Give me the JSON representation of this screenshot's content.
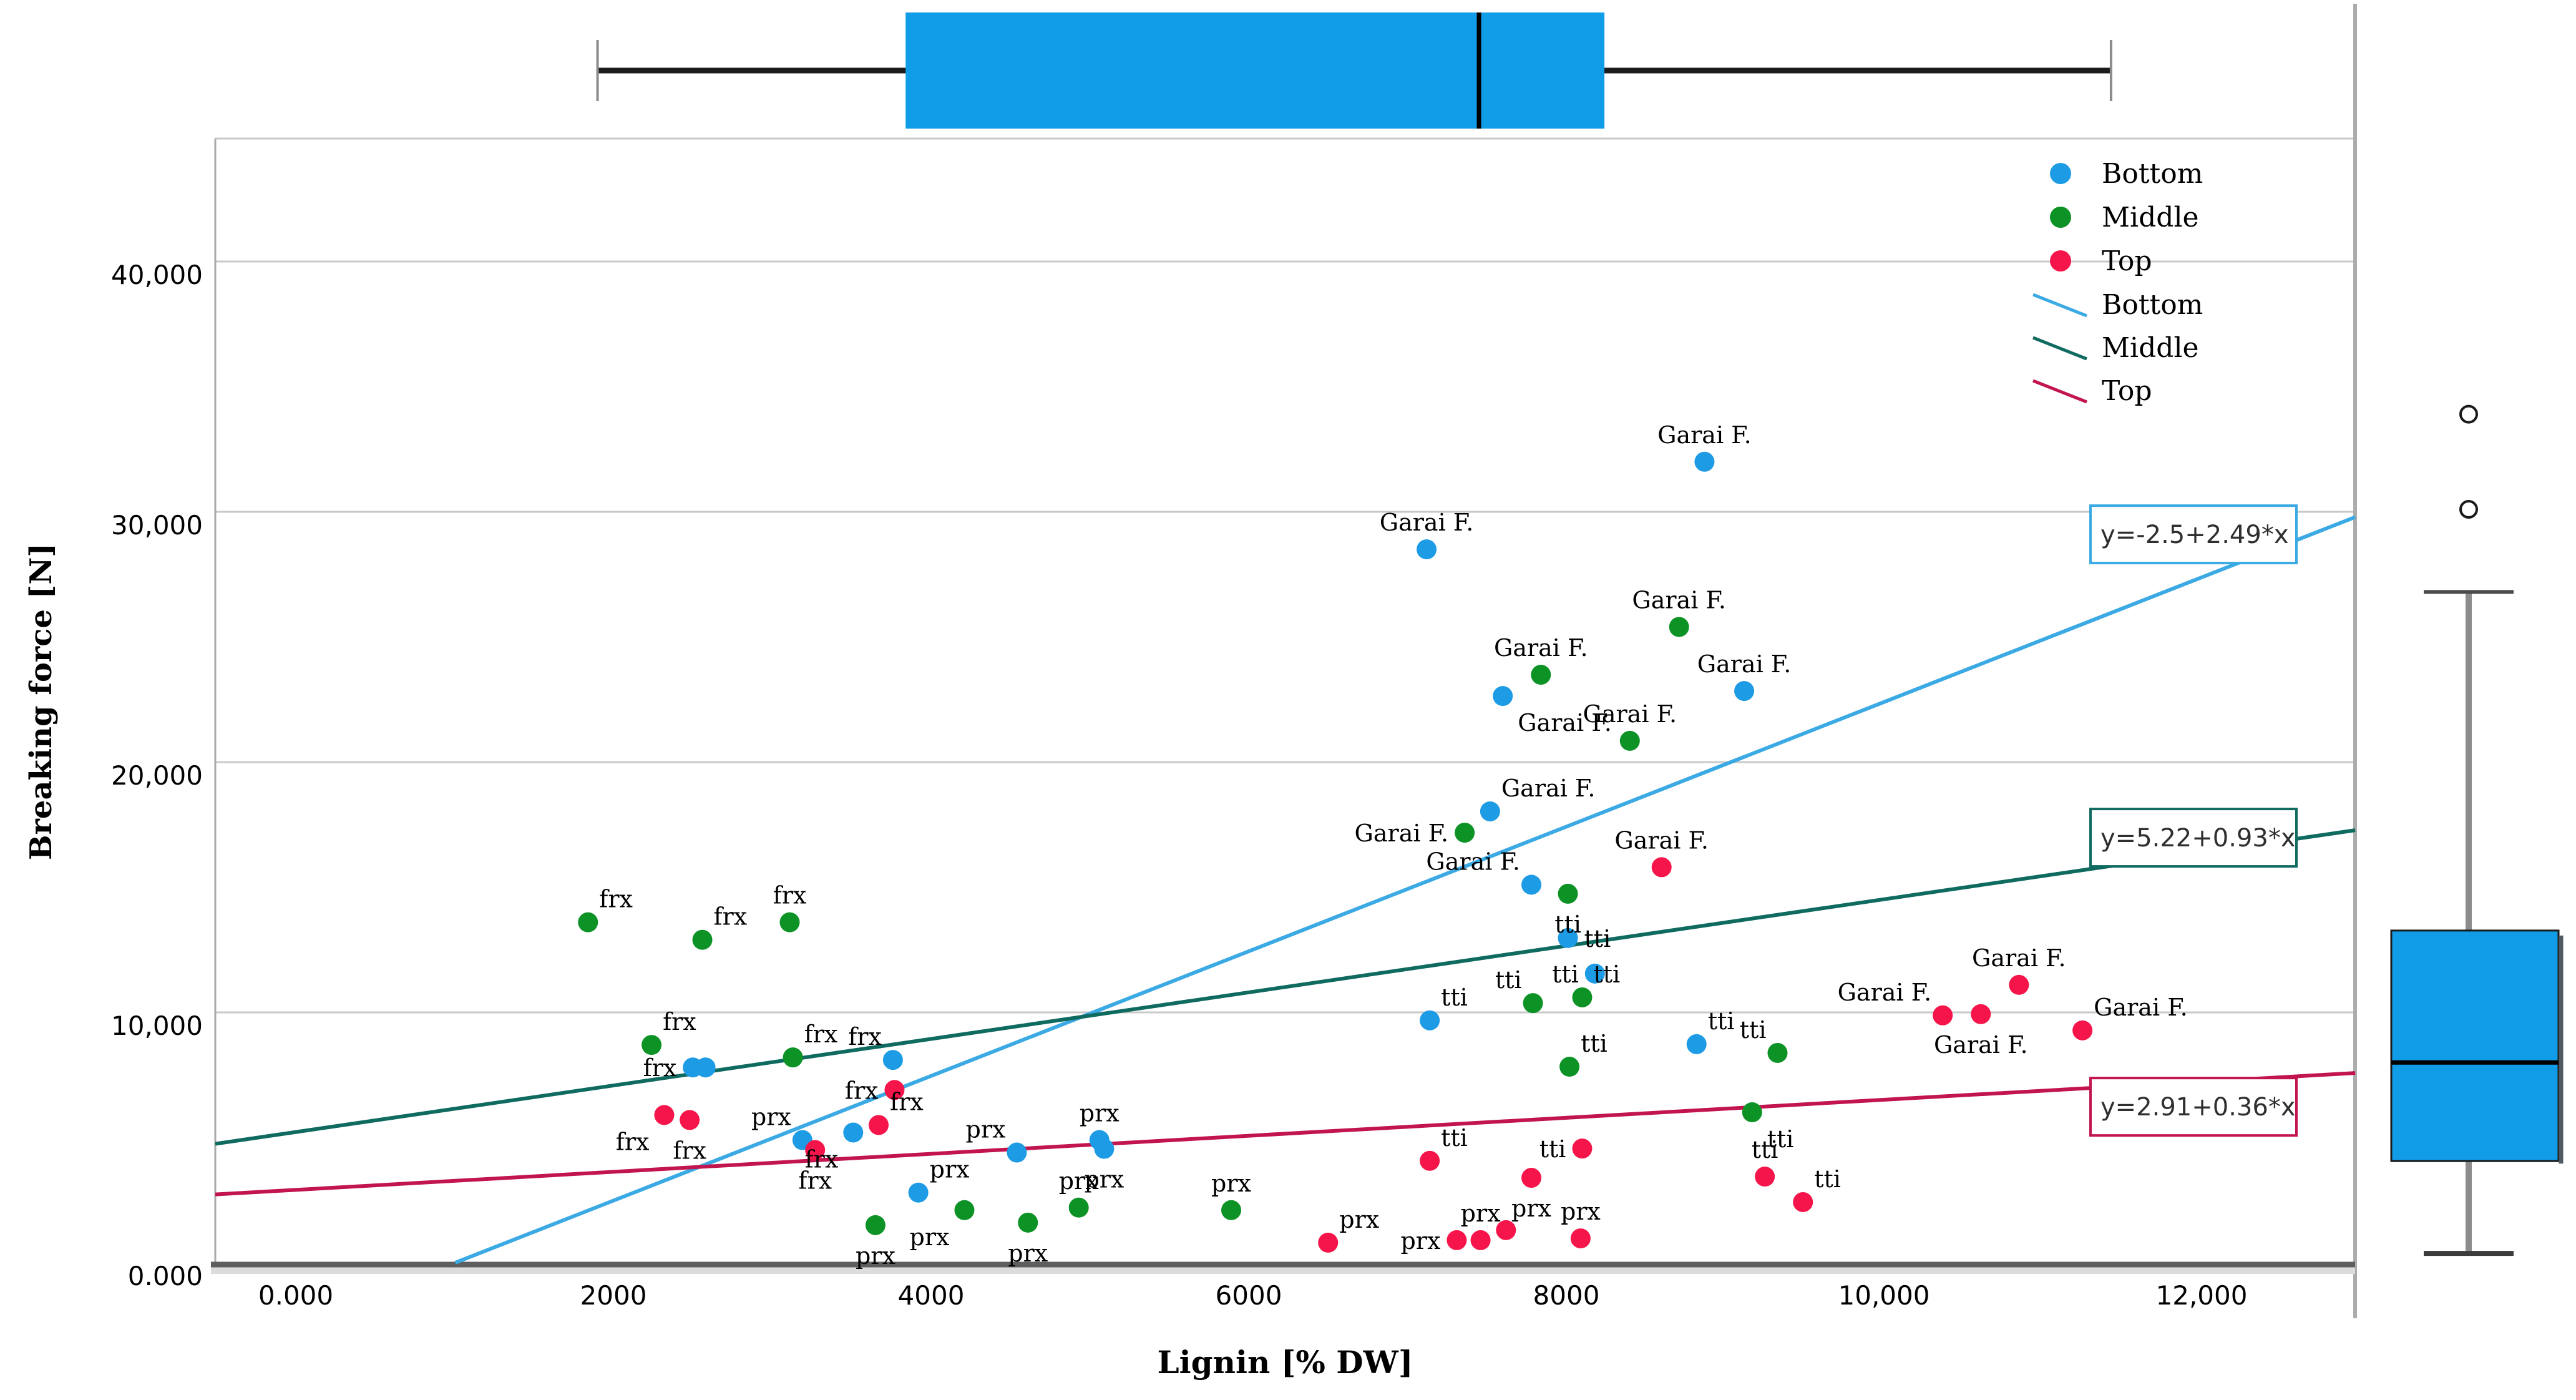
{
  "chart_data": {
    "type": "scatter",
    "title": "",
    "xlabel": "Lignin [% DW]",
    "ylabel": "Breaking force [N]",
    "grid": "horizontal",
    "legend_position": "top-right-inside",
    "xlim": [
      -507,
      12967
    ],
    "ylim": [
      -75,
      44913
    ],
    "x_ticks": [
      {
        "v": 0,
        "label": "0.000"
      },
      {
        "v": 2000,
        "label": "2000"
      },
      {
        "v": 4000,
        "label": "4000"
      },
      {
        "v": 6000,
        "label": "6000"
      },
      {
        "v": 8000,
        "label": "8000"
      },
      {
        "v": 10000,
        "label": "10,000"
      },
      {
        "v": 12000,
        "label": "12,000"
      }
    ],
    "y_ticks": [
      {
        "v": 0,
        "label": "0.000"
      },
      {
        "v": 10000,
        "label": "10,000"
      },
      {
        "v": 20000,
        "label": "20,000"
      },
      {
        "v": 30000,
        "label": "30,000"
      },
      {
        "v": 40000,
        "label": "40,000"
      }
    ],
    "gridlines_y": [
      10000,
      20000,
      30000,
      40000
    ],
    "colors": {
      "background": "#ffffff",
      "grid": "#c9c9c9",
      "frame": "#a9a9a9",
      "axis_dark": "#5e5e5e",
      "axis_shadow": "#dcdcdc",
      "divider": "#acacac",
      "box_fill": "#119ce8",
      "box_border": "#1a1a1a",
      "whisker_gray": "#8c8c8c",
      "text": "#000000",
      "eq_text": "#2f2f2f"
    },
    "series": [
      {
        "name": "Bottom",
        "marker_color": "#1d9be4",
        "line_color": "#3baae4",
        "equation": "y=-2.5+2.49*x",
        "regression": {
          "intercept": -2500,
          "slope": 2.49,
          "x_from": 1004,
          "x_to": 12967
        },
        "eq_box_y_value": 29100,
        "points": [
          [
            2500,
            7800,
            "frx",
            "w"
          ],
          [
            2580,
            7800,
            "",
            ""
          ],
          [
            3760,
            8100,
            "frx",
            "nw"
          ],
          [
            3190,
            4900,
            "prx",
            "nw"
          ],
          [
            3510,
            5200,
            "frx",
            "sw"
          ],
          [
            3920,
            2800,
            "prx",
            "ne"
          ],
          [
            4540,
            4400,
            "prx",
            "nw"
          ],
          [
            5060,
            4900,
            "prx",
            "n"
          ],
          [
            5090,
            4550,
            "prx",
            "s"
          ],
          [
            7140,
            9680,
            "tti",
            "ne"
          ],
          [
            7780,
            15100,
            "Garai F.",
            "nw"
          ],
          [
            8010,
            12970,
            "tti",
            "e"
          ],
          [
            8180,
            11550,
            "tti",
            "w"
          ],
          [
            8820,
            8730,
            "tti",
            "ne"
          ],
          [
            7120,
            28500,
            "Garai F.",
            "n"
          ],
          [
            7600,
            22640,
            "Garai F.",
            "se"
          ],
          [
            8870,
            32000,
            "Garai F.",
            "n"
          ],
          [
            9120,
            22840,
            "Garai F.",
            "n"
          ],
          [
            7520,
            18030,
            "Garai F.",
            "ne"
          ]
        ]
      },
      {
        "name": "Middle",
        "marker_color": "#0d9226",
        "line_color": "#0f6a60",
        "equation": "y=5.22+0.93*x",
        "regression": {
          "intercept": 5220,
          "slope": 0.93,
          "x_from": -507,
          "x_to": 12967
        },
        "eq_box_y_value": 16980,
        "points": [
          [
            1840,
            13600,
            "frx",
            "ne"
          ],
          [
            2560,
            12900,
            "frx",
            "ne"
          ],
          [
            3110,
            13600,
            "frx",
            "n"
          ],
          [
            2240,
            8700,
            "frx",
            "ne"
          ],
          [
            3130,
            8200,
            "frx",
            "ne"
          ],
          [
            3650,
            1500,
            "prx",
            "s"
          ],
          [
            4210,
            2100,
            "prx",
            "sw"
          ],
          [
            4610,
            1600,
            "prx",
            "s"
          ],
          [
            4930,
            2200,
            "prx",
            "n"
          ],
          [
            5890,
            2100,
            "prx",
            "n"
          ],
          [
            8010,
            14740,
            "tti",
            "s"
          ],
          [
            7790,
            10370,
            "tti",
            "nw"
          ],
          [
            8100,
            10600,
            "tti",
            "ne"
          ],
          [
            8020,
            7830,
            "tti",
            "ne"
          ],
          [
            9330,
            8380,
            "tti",
            "nw"
          ],
          [
            9170,
            6010,
            "tti",
            "se"
          ],
          [
            8710,
            25400,
            "Garai F.",
            "n"
          ],
          [
            7840,
            23490,
            "Garai F.",
            "n"
          ],
          [
            8400,
            20850,
            "Garai F.",
            "n"
          ],
          [
            7360,
            17180,
            "Garai F.",
            "w"
          ]
        ]
      },
      {
        "name": "Top",
        "marker_color": "#f6154b",
        "line_color": "#c2154f",
        "equation": "y=2.91+0.36*x",
        "regression": {
          "intercept": 2910,
          "slope": 0.36,
          "x_from": -507,
          "x_to": 12967
        },
        "eq_box_y_value": 6230,
        "points": [
          [
            2320,
            5900,
            "frx",
            "sw"
          ],
          [
            2480,
            5700,
            "frx",
            "s"
          ],
          [
            3270,
            4500,
            "frx",
            "s"
          ],
          [
            3670,
            5500,
            "frx",
            "ne"
          ],
          [
            3770,
            6900,
            "frx",
            "w"
          ],
          [
            6500,
            800,
            "prx",
            "ne"
          ],
          [
            7310,
            900,
            "prx",
            "w"
          ],
          [
            7460,
            900,
            "prx",
            "n"
          ],
          [
            7620,
            1300,
            "",
            ""
          ],
          [
            8090,
            970,
            "prx",
            "n"
          ],
          [
            7780,
            3390,
            "prx",
            "s"
          ],
          [
            7140,
            4070,
            "tti",
            "ne"
          ],
          [
            8100,
            4560,
            "tti",
            "w"
          ],
          [
            9250,
            3440,
            "tti",
            "n"
          ],
          [
            9490,
            2420,
            "tti",
            "ne"
          ],
          [
            8600,
            15800,
            "Garai F.",
            "n"
          ],
          [
            10850,
            11100,
            "Garai F.",
            "n"
          ],
          [
            10370,
            9880,
            "Garai F.",
            "nw"
          ],
          [
            10610,
            9930,
            "Garai F.",
            "s"
          ],
          [
            11250,
            9280,
            "Garai F.",
            "ne"
          ]
        ]
      }
    ],
    "legend": {
      "marker_entries": [
        "Bottom",
        "Middle",
        "Top"
      ],
      "line_entries": [
        "Bottom",
        "Middle",
        "Top"
      ]
    },
    "marginal_boxplots": {
      "top_lignin": {
        "orientation": "horizontal",
        "min": 1900,
        "q1": 3840,
        "median": 7450,
        "q3": 8240,
        "max": 11430,
        "outliers": []
      },
      "right_breaking_force": {
        "orientation": "vertical",
        "min": 370,
        "q1": 4060,
        "median": 8000,
        "q3": 13270,
        "max": 26800,
        "outliers": [
          30100,
          33900
        ]
      }
    }
  }
}
